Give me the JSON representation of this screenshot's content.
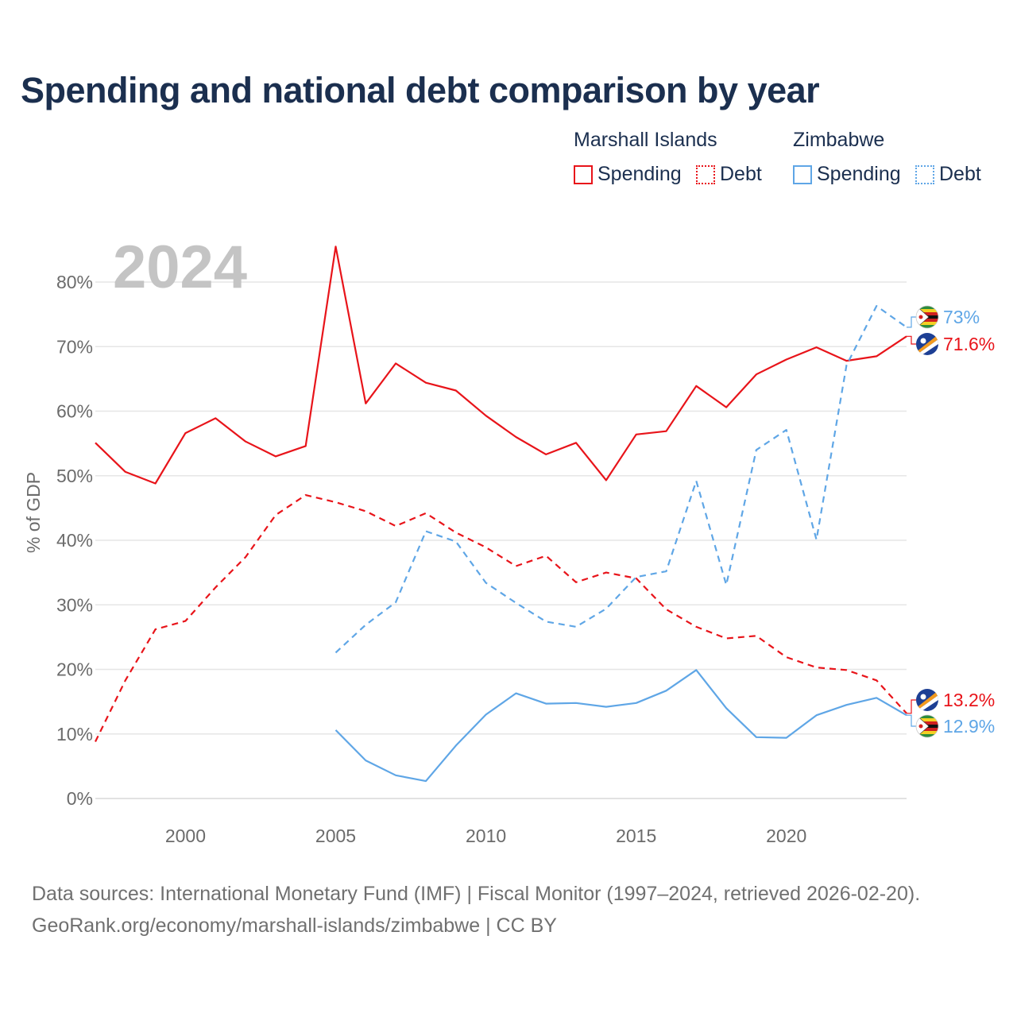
{
  "title": "Spending and national debt comparison by year",
  "legend": {
    "groups": [
      {
        "country": "Marshall Islands",
        "items": [
          {
            "label": "Spending",
            "style": "solid"
          },
          {
            "label": "Debt",
            "style": "dotted"
          }
        ],
        "color": "#e8141a"
      },
      {
        "country": "Zimbabwe",
        "items": [
          {
            "label": "Spending",
            "style": "solid"
          },
          {
            "label": "Debt",
            "style": "dotted"
          }
        ],
        "color": "#5fa6e6"
      }
    ]
  },
  "year_watermark": "2024",
  "source": {
    "line1": "Data sources: International Monetary Fund (IMF) | Fiscal Monitor (1997–2024, retrieved 2026-02-20).",
    "line2": "GeoRank.org/economy/marshall-islands/zimbabwe | CC BY"
  },
  "chart_data": {
    "type": "line",
    "title": "Spending and national debt comparison by year",
    "xlabel": "",
    "ylabel": "% of GDP",
    "xlim": [
      1997,
      2024
    ],
    "ylim": [
      0,
      85
    ],
    "x_ticks": [
      2000,
      2005,
      2010,
      2015,
      2020
    ],
    "y_ticks": [
      0,
      10,
      20,
      30,
      40,
      50,
      60,
      70,
      80
    ],
    "y_tick_labels": [
      "0%",
      "10%",
      "20%",
      "30%",
      "40%",
      "50%",
      "60%",
      "70%",
      "80%"
    ],
    "grid": true,
    "series": [
      {
        "name": "Marshall Islands Spending",
        "country": "Marshall Islands",
        "kind": "Spending",
        "style": "solid",
        "color": "#e8141a",
        "x": [
          1997,
          1998,
          1999,
          2000,
          2001,
          2002,
          2003,
          2004,
          2005,
          2006,
          2007,
          2008,
          2009,
          2010,
          2011,
          2012,
          2013,
          2014,
          2015,
          2016,
          2017,
          2018,
          2019,
          2020,
          2021,
          2022,
          2023,
          2024
        ],
        "y": [
          55.1,
          50.6,
          48.8,
          56.6,
          58.9,
          55.3,
          53.0,
          54.6,
          85.5,
          61.2,
          67.4,
          64.4,
          63.2,
          59.3,
          56.0,
          53.3,
          55.1,
          49.3,
          56.4,
          56.9,
          63.9,
          60.6,
          65.7,
          68.0,
          69.9,
          67.8,
          68.5,
          71.6
        ],
        "end_label": "71.6%"
      },
      {
        "name": "Marshall Islands Debt",
        "country": "Marshall Islands",
        "kind": "Debt",
        "style": "dashed",
        "color": "#e8141a",
        "x": [
          1997,
          1998,
          1999,
          2000,
          2001,
          2002,
          2003,
          2004,
          2005,
          2006,
          2007,
          2008,
          2009,
          2010,
          2011,
          2012,
          2013,
          2014,
          2015,
          2016,
          2017,
          2018,
          2019,
          2020,
          2021,
          2022,
          2023,
          2024
        ],
        "y": [
          8.8,
          18.3,
          26.2,
          27.5,
          32.7,
          37.4,
          43.9,
          47.0,
          45.9,
          44.5,
          42.2,
          44.2,
          41.2,
          38.9,
          36.0,
          37.6,
          33.5,
          35.0,
          34.1,
          29.3,
          26.6,
          24.8,
          25.2,
          21.9,
          20.3,
          19.9,
          18.3,
          13.2
        ],
        "end_label": "13.2%"
      },
      {
        "name": "Zimbabwe Spending",
        "country": "Zimbabwe",
        "kind": "Spending",
        "style": "solid",
        "color": "#5fa6e6",
        "x": [
          2005,
          2006,
          2007,
          2008,
          2009,
          2010,
          2011,
          2012,
          2013,
          2014,
          2015,
          2016,
          2017,
          2018,
          2019,
          2020,
          2021,
          2022,
          2023,
          2024
        ],
        "y": [
          10.6,
          5.9,
          3.6,
          2.7,
          8.2,
          13.0,
          16.3,
          14.7,
          14.8,
          14.2,
          14.8,
          16.7,
          19.9,
          14.0,
          9.5,
          9.4,
          12.9,
          14.5,
          15.6,
          12.9
        ],
        "end_label": "12.9%"
      },
      {
        "name": "Zimbabwe Debt",
        "country": "Zimbabwe",
        "kind": "Debt",
        "style": "dashed",
        "color": "#5fa6e6",
        "x": [
          2005,
          2006,
          2007,
          2008,
          2009,
          2010,
          2011,
          2012,
          2013,
          2014,
          2015,
          2016,
          2017,
          2018,
          2019,
          2020,
          2021,
          2022,
          2023,
          2024
        ],
        "y": [
          22.6,
          26.9,
          30.4,
          41.4,
          39.8,
          33.4,
          30.3,
          27.4,
          26.6,
          29.4,
          34.3,
          35.2,
          49.2,
          33.1,
          54.0,
          57.1,
          40.1,
          67.1,
          76.3,
          73.0
        ],
        "end_label": "73%"
      }
    ]
  }
}
